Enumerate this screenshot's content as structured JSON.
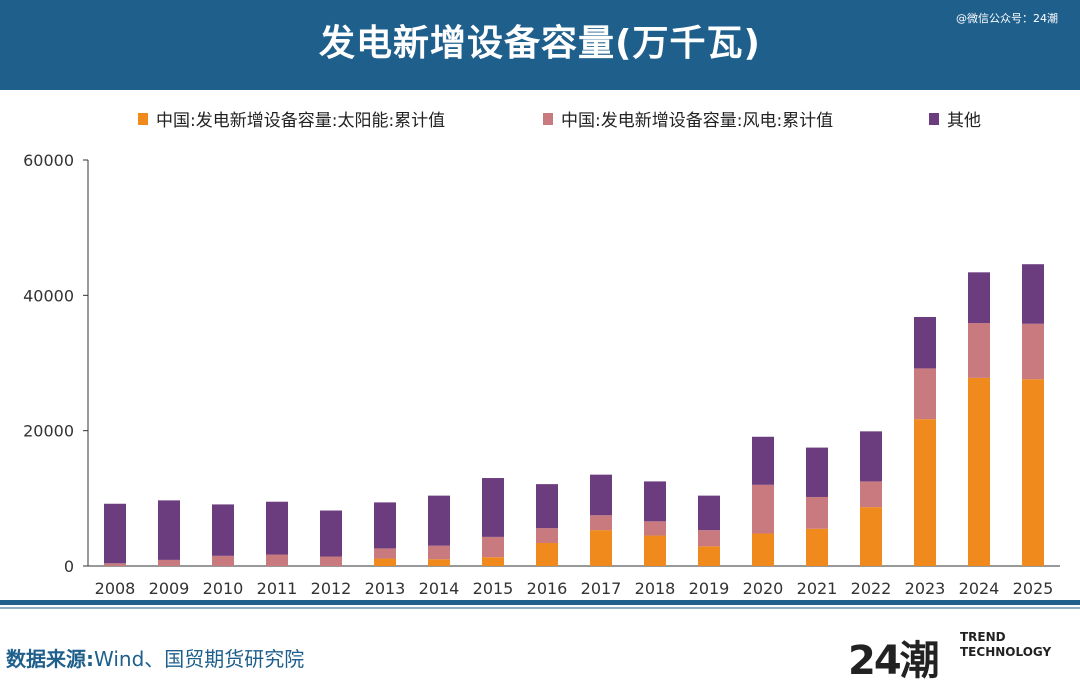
{
  "header": {
    "title": "发电新增设备容量(万千瓦)",
    "watermark": "@微信公众号：24潮"
  },
  "legend": [
    {
      "label": "中国:发电新增设备容量:太阳能:累计值",
      "color": "#f08a1c"
    },
    {
      "label": "中国:发电新增设备容量:风电:累计值",
      "color": "#c87a7e"
    },
    {
      "label": "其他",
      "color": "#6c3d7e"
    }
  ],
  "footer": {
    "source_label": "数据来源:",
    "source_text": "Wind、国贸期货研究院",
    "logo_mark": "24潮",
    "logo_line1": "TREND",
    "logo_line2": "TECHNOLOGY"
  },
  "colors": {
    "brand": "#1e5f8c",
    "solar": "#f08a1c",
    "wind": "#c87a7e",
    "other": "#6c3d7e"
  },
  "chart_data": {
    "type": "bar",
    "stacked": true,
    "title": "发电新增设备容量(万千瓦)",
    "xlabel": "",
    "ylabel": "",
    "ylim": [
      0,
      60000
    ],
    "yticks": [
      0,
      20000,
      40000,
      60000
    ],
    "grid": false,
    "legend_position": "top",
    "categories": [
      "2008",
      "2009",
      "2010",
      "2011",
      "2012",
      "2013",
      "2014",
      "2015",
      "2016",
      "2017",
      "2018",
      "2019",
      "2020",
      "2021",
      "2022",
      "2023",
      "2024",
      "2025"
    ],
    "series": [
      {
        "name": "中国:发电新增设备容量:太阳能:累计值",
        "values": [
          0,
          0,
          0,
          0,
          0,
          1100,
          1000,
          1300,
          3400,
          5300,
          4500,
          2900,
          4800,
          5500,
          8700,
          21700,
          27800,
          27600
        ]
      },
      {
        "name": "中国:发电新增设备容量:风电:累计值",
        "values": [
          400,
          900,
          1500,
          1700,
          1400,
          1500,
          2000,
          3000,
          2200,
          2200,
          2100,
          2400,
          7200,
          4700,
          3800,
          7500,
          8100,
          8200
        ]
      },
      {
        "name": "其他",
        "values": [
          8800,
          8800,
          7600,
          7800,
          6800,
          6800,
          7400,
          8700,
          6500,
          6000,
          5900,
          5100,
          7100,
          7300,
          7400,
          7600,
          7500,
          8800
        ]
      }
    ]
  }
}
